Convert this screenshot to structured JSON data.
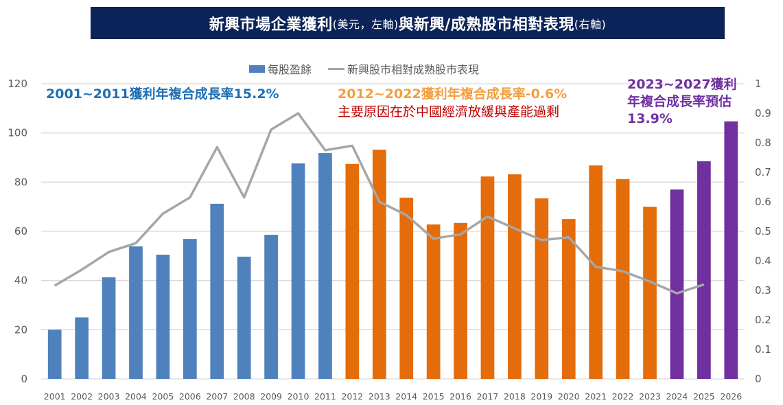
{
  "header": {
    "title_main_1": "新興市場企業獲利",
    "title_note_1": "(美元，左軸)",
    "title_main_2": "與新興/成熟股市相對表現",
    "title_note_2": "(右軸)"
  },
  "legend": {
    "bar_label": "每股盈餘",
    "line_label": "新興股市相對成熟股市表現"
  },
  "annotations": {
    "period1": "2001~2011獲利年複合成長率15.2%",
    "period2": "2012~2022獲利年複合成長率-0.6%",
    "period2_reason": "主要原因在於中國經濟放緩與產能過剩",
    "period3_line1": "2023~2027獲利",
    "period3_line2": "年複合成長率預估",
    "period3_line3": "13.9%"
  },
  "colors": {
    "title_bg": "#0b2358",
    "bar_2001_2011": "#4f81bd",
    "bar_2012_2023": "#e46c0a",
    "bar_2024_2026": "#7030a0",
    "line": "#a6a6a6",
    "grid": "#d9d9d9"
  },
  "chart_data": {
    "type": "bar",
    "title": "新興市場企業獲利(美元，左軸)與新興/成熟股市相對表現(右軸)",
    "xlabel": "",
    "ylabel": "",
    "categories": [
      "2001",
      "2002",
      "2003",
      "2004",
      "2005",
      "2006",
      "2007",
      "2008",
      "2009",
      "2010",
      "2011",
      "2012",
      "2013",
      "2014",
      "2015",
      "2016",
      "2017",
      "2018",
      "2019",
      "2020",
      "2021",
      "2022",
      "2023",
      "2024",
      "2025",
      "2026"
    ],
    "series": [
      {
        "name": "每股盈餘",
        "type": "bar",
        "axis": "left",
        "values": [
          20,
          25,
          41.3,
          53.9,
          50.5,
          56.9,
          71.2,
          49.7,
          58.6,
          87.6,
          91.8,
          87.4,
          93.2,
          73.7,
          62.8,
          63.4,
          82.3,
          83.2,
          73.4,
          65.0,
          86.8,
          81.2,
          70.0,
          77.0,
          88.5,
          104.7
        ],
        "color_groups": [
          {
            "from": "2001",
            "to": "2011",
            "color": "#4f81bd"
          },
          {
            "from": "2012",
            "to": "2023",
            "color": "#e46c0a"
          },
          {
            "from": "2024",
            "to": "2026",
            "color": "#7030a0"
          }
        ]
      },
      {
        "name": "新興股市相對成熟股市表現",
        "type": "line",
        "axis": "right",
        "values": [
          0.316,
          0.37,
          0.43,
          0.46,
          0.56,
          0.615,
          0.785,
          0.615,
          0.845,
          0.9,
          0.775,
          0.79,
          0.6,
          0.555,
          0.475,
          0.49,
          0.55,
          0.51,
          0.47,
          0.48,
          0.38,
          0.365,
          0.33,
          0.29,
          0.32,
          null
        ],
        "color": "#a6a6a6"
      }
    ],
    "ylim_left": [
      0,
      120
    ],
    "yticks_left": [
      "0",
      "20",
      "40",
      "60",
      "80",
      "100",
      "120"
    ],
    "ylim_right": [
      0,
      1
    ],
    "yticks_right": [
      "0",
      "0.1",
      "0.2",
      "0.3",
      "0.4",
      "0.5",
      "0.6",
      "0.7",
      "0.8",
      "0.9",
      "1"
    ],
    "grid": true,
    "legend_position": "top-center"
  }
}
